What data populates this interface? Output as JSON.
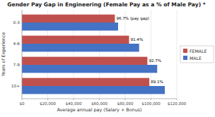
{
  "chart_data": {
    "type": "bar",
    "orientation": "horizontal",
    "title": "Gender Pay Gap in Engineering (Female Pay as a % of Male Pay) *",
    "x_label": "Average annual pay (Salary + Bonus)",
    "y_label": "Years of Experience",
    "categories": [
      "10+",
      "7-9",
      "4-6",
      "0-3"
    ],
    "series": [
      {
        "name": "FEMALE",
        "color": "#C0504D",
        "values": [
          98700,
          97200,
          83000,
          72000
        ]
      },
      {
        "name": "MALE",
        "color": "#4472C4",
        "values": [
          110700,
          104800,
          90800,
          74500
        ]
      }
    ],
    "annotations": [
      "89.1%",
      "92.7%",
      "91.4%",
      "96.7% (pay gap)"
    ],
    "xlim": [
      0,
      120000
    ],
    "xticks": [
      {
        "value": 0,
        "label": "$0"
      },
      {
        "value": 20000,
        "label": "$20,000"
      },
      {
        "value": 40000,
        "label": "$40,000"
      },
      {
        "value": 60000,
        "label": "$60,000"
      },
      {
        "value": 80000,
        "label": "$80,000"
      },
      {
        "value": 100000,
        "label": "$100,000"
      },
      {
        "value": 120000,
        "label": "$120,000"
      }
    ],
    "grid": true,
    "legend": "right"
  }
}
